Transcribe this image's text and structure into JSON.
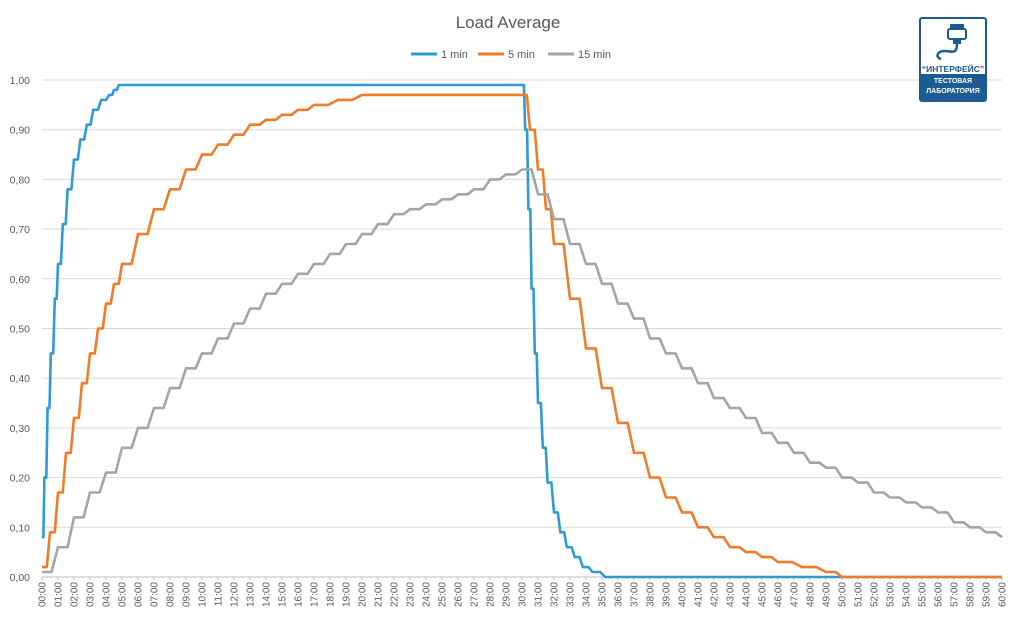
{
  "chart_data": {
    "type": "line",
    "title": "Load Average",
    "legend_position": "top",
    "grid": true,
    "ylim": [
      0,
      1
    ],
    "y_ticks": [
      "0,00",
      "0,10",
      "0,20",
      "0,30",
      "0,40",
      "0,50",
      "0,60",
      "0,70",
      "0,80",
      "0,90",
      "1,00"
    ],
    "x_ticks": [
      "00:00",
      "01:00",
      "02:00",
      "03:00",
      "04:00",
      "05:00",
      "06:00",
      "07:00",
      "08:00",
      "09:00",
      "10:00",
      "11:00",
      "12:00",
      "13:00",
      "14:00",
      "15:00",
      "16:00",
      "17:00",
      "18:00",
      "19:00",
      "20:00",
      "21:00",
      "22:00",
      "23:00",
      "24:00",
      "25:00",
      "26:00",
      "27:00",
      "28:00",
      "29:00",
      "30:00",
      "31:00",
      "32:00",
      "33:00",
      "34:00",
      "35:00",
      "36:00",
      "37:00",
      "38:00",
      "39:00",
      "40:00",
      "41:00",
      "42:00",
      "43:00",
      "44:00",
      "45:00",
      "46:00",
      "47:00",
      "48:00",
      "49:00",
      "50:00",
      "51:00",
      "52:00",
      "53:00",
      "54:00",
      "55:00",
      "56:00",
      "57:00",
      "58:00",
      "59:00",
      "60:00"
    ],
    "xlim": [
      0,
      60
    ],
    "series": [
      {
        "name": "1 min",
        "color": "#2e9bd6",
        "points": [
          [
            0,
            0.08
          ],
          [
            0.15,
            0.2
          ],
          [
            0.35,
            0.34
          ],
          [
            0.55,
            0.45
          ],
          [
            0.8,
            0.56
          ],
          [
            1.0,
            0.63
          ],
          [
            1.3,
            0.71
          ],
          [
            1.6,
            0.78
          ],
          [
            2.0,
            0.84
          ],
          [
            2.4,
            0.88
          ],
          [
            2.8,
            0.91
          ],
          [
            3.2,
            0.94
          ],
          [
            3.7,
            0.96
          ],
          [
            4.2,
            0.97
          ],
          [
            4.5,
            0.98
          ],
          [
            4.8,
            0.99
          ],
          [
            30.0,
            0.99
          ],
          [
            30.2,
            0.9
          ],
          [
            30.4,
            0.74
          ],
          [
            30.6,
            0.58
          ],
          [
            30.8,
            0.45
          ],
          [
            31.0,
            0.35
          ],
          [
            31.3,
            0.26
          ],
          [
            31.6,
            0.19
          ],
          [
            32.0,
            0.13
          ],
          [
            32.4,
            0.09
          ],
          [
            32.8,
            0.06
          ],
          [
            33.3,
            0.04
          ],
          [
            33.8,
            0.02
          ],
          [
            34.4,
            0.01
          ],
          [
            35.2,
            0.0
          ],
          [
            60.0,
            0.0
          ]
        ]
      },
      {
        "name": "5 min",
        "color": "#f07b2a",
        "points": [
          [
            0,
            0.02
          ],
          [
            0.5,
            0.09
          ],
          [
            1.0,
            0.17
          ],
          [
            1.5,
            0.25
          ],
          [
            2.0,
            0.32
          ],
          [
            2.5,
            0.39
          ],
          [
            3.0,
            0.45
          ],
          [
            3.5,
            0.5
          ],
          [
            4.0,
            0.55
          ],
          [
            4.5,
            0.59
          ],
          [
            5.0,
            0.63
          ],
          [
            6.0,
            0.69
          ],
          [
            7.0,
            0.74
          ],
          [
            8.0,
            0.78
          ],
          [
            9.0,
            0.82
          ],
          [
            10.0,
            0.85
          ],
          [
            11.0,
            0.87
          ],
          [
            12.0,
            0.89
          ],
          [
            13.0,
            0.91
          ],
          [
            14.0,
            0.92
          ],
          [
            15.0,
            0.93
          ],
          [
            16.0,
            0.94
          ],
          [
            17.0,
            0.95
          ],
          [
            18.5,
            0.96
          ],
          [
            20.0,
            0.97
          ],
          [
            30.0,
            0.97
          ],
          [
            30.5,
            0.9
          ],
          [
            31.0,
            0.82
          ],
          [
            31.5,
            0.74
          ],
          [
            32.0,
            0.67
          ],
          [
            33.0,
            0.56
          ],
          [
            34.0,
            0.46
          ],
          [
            35.0,
            0.38
          ],
          [
            36.0,
            0.31
          ],
          [
            37.0,
            0.25
          ],
          [
            38.0,
            0.2
          ],
          [
            39.0,
            0.16
          ],
          [
            40.0,
            0.13
          ],
          [
            41.0,
            0.1
          ],
          [
            42.0,
            0.08
          ],
          [
            43.0,
            0.06
          ],
          [
            44.0,
            0.05
          ],
          [
            45.0,
            0.04
          ],
          [
            46.0,
            0.03
          ],
          [
            47.5,
            0.02
          ],
          [
            49.0,
            0.01
          ],
          [
            50.0,
            0.0
          ],
          [
            60.0,
            0.0
          ]
        ]
      },
      {
        "name": "15 min",
        "color": "#a5a5a5",
        "points": [
          [
            0,
            0.01
          ],
          [
            1.0,
            0.06
          ],
          [
            2.0,
            0.12
          ],
          [
            3.0,
            0.17
          ],
          [
            4.0,
            0.21
          ],
          [
            5.0,
            0.26
          ],
          [
            6.0,
            0.3
          ],
          [
            7.0,
            0.34
          ],
          [
            8.0,
            0.38
          ],
          [
            9.0,
            0.42
          ],
          [
            10.0,
            0.45
          ],
          [
            11.0,
            0.48
          ],
          [
            12.0,
            0.51
          ],
          [
            13.0,
            0.54
          ],
          [
            14.0,
            0.57
          ],
          [
            15.0,
            0.59
          ],
          [
            16.0,
            0.61
          ],
          [
            17.0,
            0.63
          ],
          [
            18.0,
            0.65
          ],
          [
            19.0,
            0.67
          ],
          [
            20.0,
            0.69
          ],
          [
            21.0,
            0.71
          ],
          [
            22.0,
            0.73
          ],
          [
            23.0,
            0.74
          ],
          [
            24.0,
            0.75
          ],
          [
            25.0,
            0.76
          ],
          [
            26.0,
            0.77
          ],
          [
            27.0,
            0.78
          ],
          [
            28.0,
            0.8
          ],
          [
            29.0,
            0.81
          ],
          [
            30.0,
            0.82
          ],
          [
            31.0,
            0.77
          ],
          [
            32.0,
            0.72
          ],
          [
            33.0,
            0.67
          ],
          [
            34.0,
            0.63
          ],
          [
            35.0,
            0.59
          ],
          [
            36.0,
            0.55
          ],
          [
            37.0,
            0.52
          ],
          [
            38.0,
            0.48
          ],
          [
            39.0,
            0.45
          ],
          [
            40.0,
            0.42
          ],
          [
            41.0,
            0.39
          ],
          [
            42.0,
            0.36
          ],
          [
            43.0,
            0.34
          ],
          [
            44.0,
            0.32
          ],
          [
            45.0,
            0.29
          ],
          [
            46.0,
            0.27
          ],
          [
            47.0,
            0.25
          ],
          [
            48.0,
            0.23
          ],
          [
            49.0,
            0.22
          ],
          [
            50.0,
            0.2
          ],
          [
            51.0,
            0.19
          ],
          [
            52.0,
            0.17
          ],
          [
            53.0,
            0.16
          ],
          [
            54.0,
            0.15
          ],
          [
            55.0,
            0.14
          ],
          [
            56.0,
            0.13
          ],
          [
            57.0,
            0.11
          ],
          [
            58.0,
            0.1
          ],
          [
            59.0,
            0.09
          ],
          [
            60.0,
            0.08
          ]
        ]
      }
    ]
  },
  "badge": {
    "name": "“ИНТЕРФЕЙС”",
    "line1": "ТЕСТОВАЯ",
    "line2": "ЛАБОРАТОРИЯ",
    "color": "#1d5b93"
  }
}
